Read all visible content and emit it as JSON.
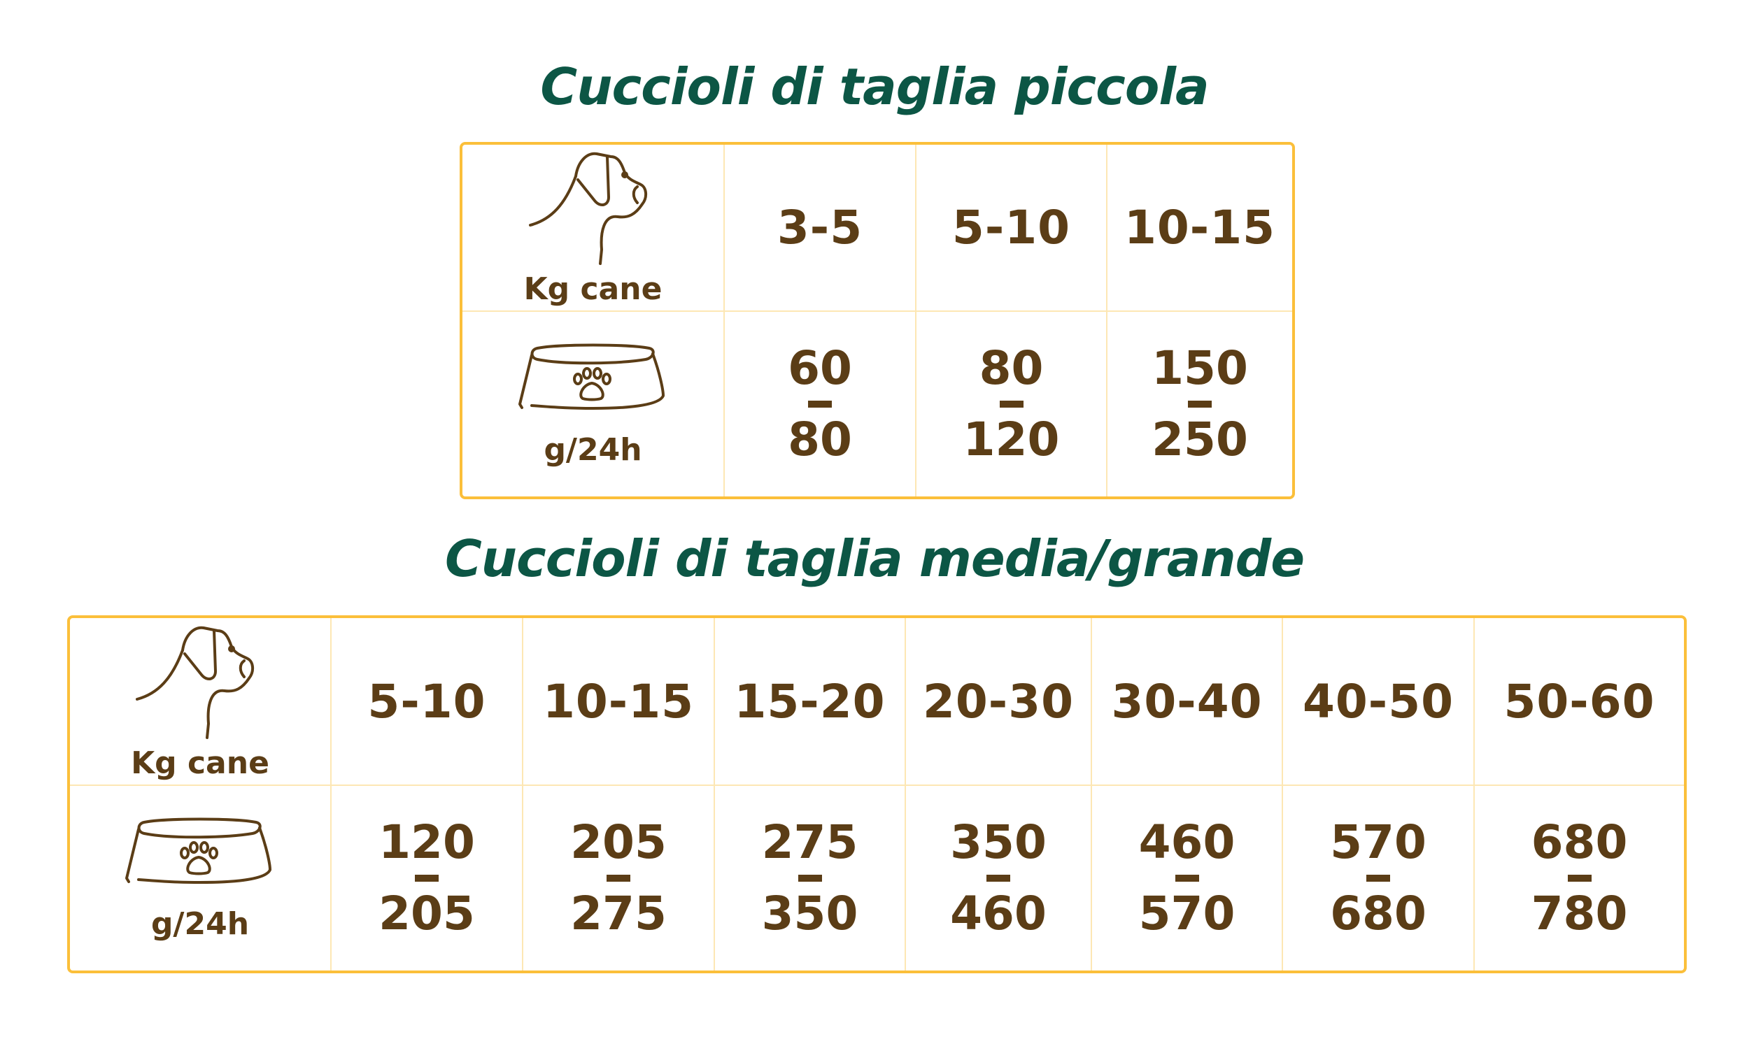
{
  "colors": {
    "title": "#0c5645",
    "text": "#5b3d16",
    "border": "#fbbf3a",
    "grid": "#fde7b4"
  },
  "icons": {
    "weight_row": "dog-head-icon",
    "portion_row": "dog-bowl-icon"
  },
  "tables": [
    {
      "title": "Cuccioli di taglia piccola",
      "weight_label": "Kg cane",
      "portion_label": "g/24h",
      "columns": [
        {
          "weight": "3-5",
          "min": "60",
          "max": "80"
        },
        {
          "weight": "5-10",
          "min": "80",
          "max": "120"
        },
        {
          "weight": "10-15",
          "min": "150",
          "max": "250"
        }
      ]
    },
    {
      "title": "Cuccioli di taglia media/grande",
      "weight_label": "Kg cane",
      "portion_label": "g/24h",
      "columns": [
        {
          "weight": "5-10",
          "min": "120",
          "max": "205"
        },
        {
          "weight": "10-15",
          "min": "205",
          "max": "275"
        },
        {
          "weight": "15-20",
          "min": "275",
          "max": "350"
        },
        {
          "weight": "20-30",
          "min": "350",
          "max": "460"
        },
        {
          "weight": "30-40",
          "min": "460",
          "max": "570"
        },
        {
          "weight": "40-50",
          "min": "570",
          "max": "680"
        },
        {
          "weight": "50-60",
          "min": "680",
          "max": "780"
        }
      ]
    }
  ]
}
